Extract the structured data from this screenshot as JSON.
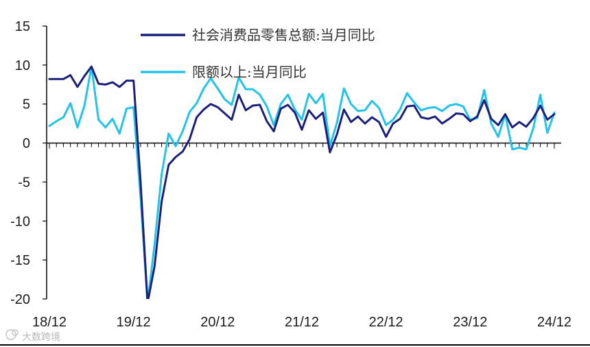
{
  "chart_data": {
    "type": "line",
    "y_ticks": [
      15,
      10,
      5,
      0,
      -5,
      -10,
      -15,
      -20
    ],
    "x_tick_labels": [
      "18/12",
      "19/12",
      "20/12",
      "21/12",
      "22/12",
      "23/12",
      "24/12"
    ],
    "ylim": [
      -20,
      15
    ],
    "grid": false,
    "legend_position": "top",
    "series": [
      {
        "name": "社会消费品零售总额:当月同比",
        "color": "#1a1f7a",
        "x": [
          "2018-12",
          "2019-01",
          "2019-02",
          "2019-03",
          "2019-04",
          "2019-05",
          "2019-06",
          "2019-07",
          "2019-08",
          "2019-09",
          "2019-10",
          "2019-11",
          "2019-12",
          "2020-01",
          "2020-02",
          "2020-03",
          "2020-04",
          "2020-05",
          "2020-06",
          "2020-07",
          "2020-08",
          "2020-09",
          "2020-10",
          "2020-11",
          "2020-12",
          "2021-01",
          "2021-02",
          "2021-03",
          "2021-04",
          "2021-05",
          "2021-06",
          "2021-07",
          "2021-08",
          "2021-09",
          "2021-10",
          "2021-11",
          "2021-12",
          "2022-01",
          "2022-02",
          "2022-03",
          "2022-04",
          "2022-05",
          "2022-06",
          "2022-07",
          "2022-08",
          "2022-09",
          "2022-10",
          "2022-11",
          "2022-12",
          "2023-01",
          "2023-02",
          "2023-03",
          "2023-04",
          "2023-05",
          "2023-06",
          "2023-07",
          "2023-08",
          "2023-09",
          "2023-10",
          "2023-11",
          "2023-12",
          "2024-01",
          "2024-02",
          "2024-03",
          "2024-04",
          "2024-05",
          "2024-06",
          "2024-07",
          "2024-08",
          "2024-09",
          "2024-10",
          "2024-11",
          "2024-12"
        ],
        "values": [
          8.2,
          8.2,
          8.2,
          8.7,
          7.2,
          8.6,
          9.8,
          7.6,
          7.5,
          7.8,
          7.2,
          8.0,
          8.0,
          -5.0,
          -20.5,
          -15.8,
          -7.5,
          -2.8,
          -1.8,
          -1.1,
          0.5,
          3.3,
          4.3,
          5.0,
          4.6,
          3.8,
          3.0,
          6.2,
          4.2,
          4.8,
          4.9,
          2.8,
          1.5,
          4.4,
          4.9,
          3.9,
          1.7,
          4.2,
          3.1,
          3.9,
          -1.2,
          1.1,
          4.3,
          2.7,
          3.4,
          2.5,
          3.3,
          2.7,
          0.8,
          2.5,
          3.1,
          4.7,
          4.8,
          3.3,
          3.1,
          3.4,
          2.5,
          3.1,
          3.8,
          3.7,
          2.8,
          3.4,
          5.5,
          3.1,
          2.3,
          3.7,
          2.0,
          2.7,
          2.1,
          3.2,
          4.8,
          3.0,
          3.7
        ]
      },
      {
        "name": "限额以上:当月同比",
        "color": "#22c3ea",
        "x": [
          "2018-12",
          "2019-01",
          "2019-02",
          "2019-03",
          "2019-04",
          "2019-05",
          "2019-06",
          "2019-07",
          "2019-08",
          "2019-09",
          "2019-10",
          "2019-11",
          "2019-12",
          "2020-01",
          "2020-02",
          "2020-03",
          "2020-04",
          "2020-05",
          "2020-06",
          "2020-07",
          "2020-08",
          "2020-09",
          "2020-10",
          "2020-11",
          "2020-12",
          "2021-01",
          "2021-02",
          "2021-03",
          "2021-04",
          "2021-05",
          "2021-06",
          "2021-07",
          "2021-08",
          "2021-09",
          "2021-10",
          "2021-11",
          "2021-12",
          "2022-01",
          "2022-02",
          "2022-03",
          "2022-04",
          "2022-05",
          "2022-06",
          "2022-07",
          "2022-08",
          "2022-09",
          "2022-10",
          "2022-11",
          "2022-12",
          "2023-01",
          "2023-02",
          "2023-03",
          "2023-04",
          "2023-05",
          "2023-06",
          "2023-07",
          "2023-08",
          "2023-09",
          "2023-10",
          "2023-11",
          "2023-12",
          "2024-01",
          "2024-02",
          "2024-03",
          "2024-04",
          "2024-05",
          "2024-06",
          "2024-07",
          "2024-08",
          "2024-09",
          "2024-10",
          "2024-11",
          "2024-12"
        ],
        "values": [
          2.2,
          2.8,
          3.3,
          5.1,
          2.0,
          4.8,
          9.8,
          3.0,
          2.0,
          3.1,
          1.2,
          4.4,
          4.6,
          -7.0,
          -20.5,
          -13.0,
          -4.0,
          1.2,
          -0.4,
          1.5,
          4.0,
          5.1,
          7.0,
          8.3,
          7.0,
          5.6,
          4.9,
          8.4,
          6.9,
          6.9,
          6.2,
          4.7,
          2.3,
          5.0,
          6.2,
          4.3,
          3.0,
          6.3,
          5.1,
          6.3,
          -0.4,
          2.6,
          7.0,
          5.0,
          4.1,
          4.2,
          5.4,
          4.5,
          2.3,
          3.0,
          4.3,
          6.4,
          5.2,
          4.2,
          4.5,
          4.6,
          4.1,
          4.8,
          5.0,
          4.7,
          3.0,
          3.2,
          6.8,
          2.5,
          0.8,
          3.7,
          -0.8,
          -0.6,
          -0.8,
          1.9,
          6.2,
          1.3,
          3.9
        ]
      }
    ]
  },
  "watermark": {
    "text": "大数跨境",
    "icon": "logo-icon"
  }
}
